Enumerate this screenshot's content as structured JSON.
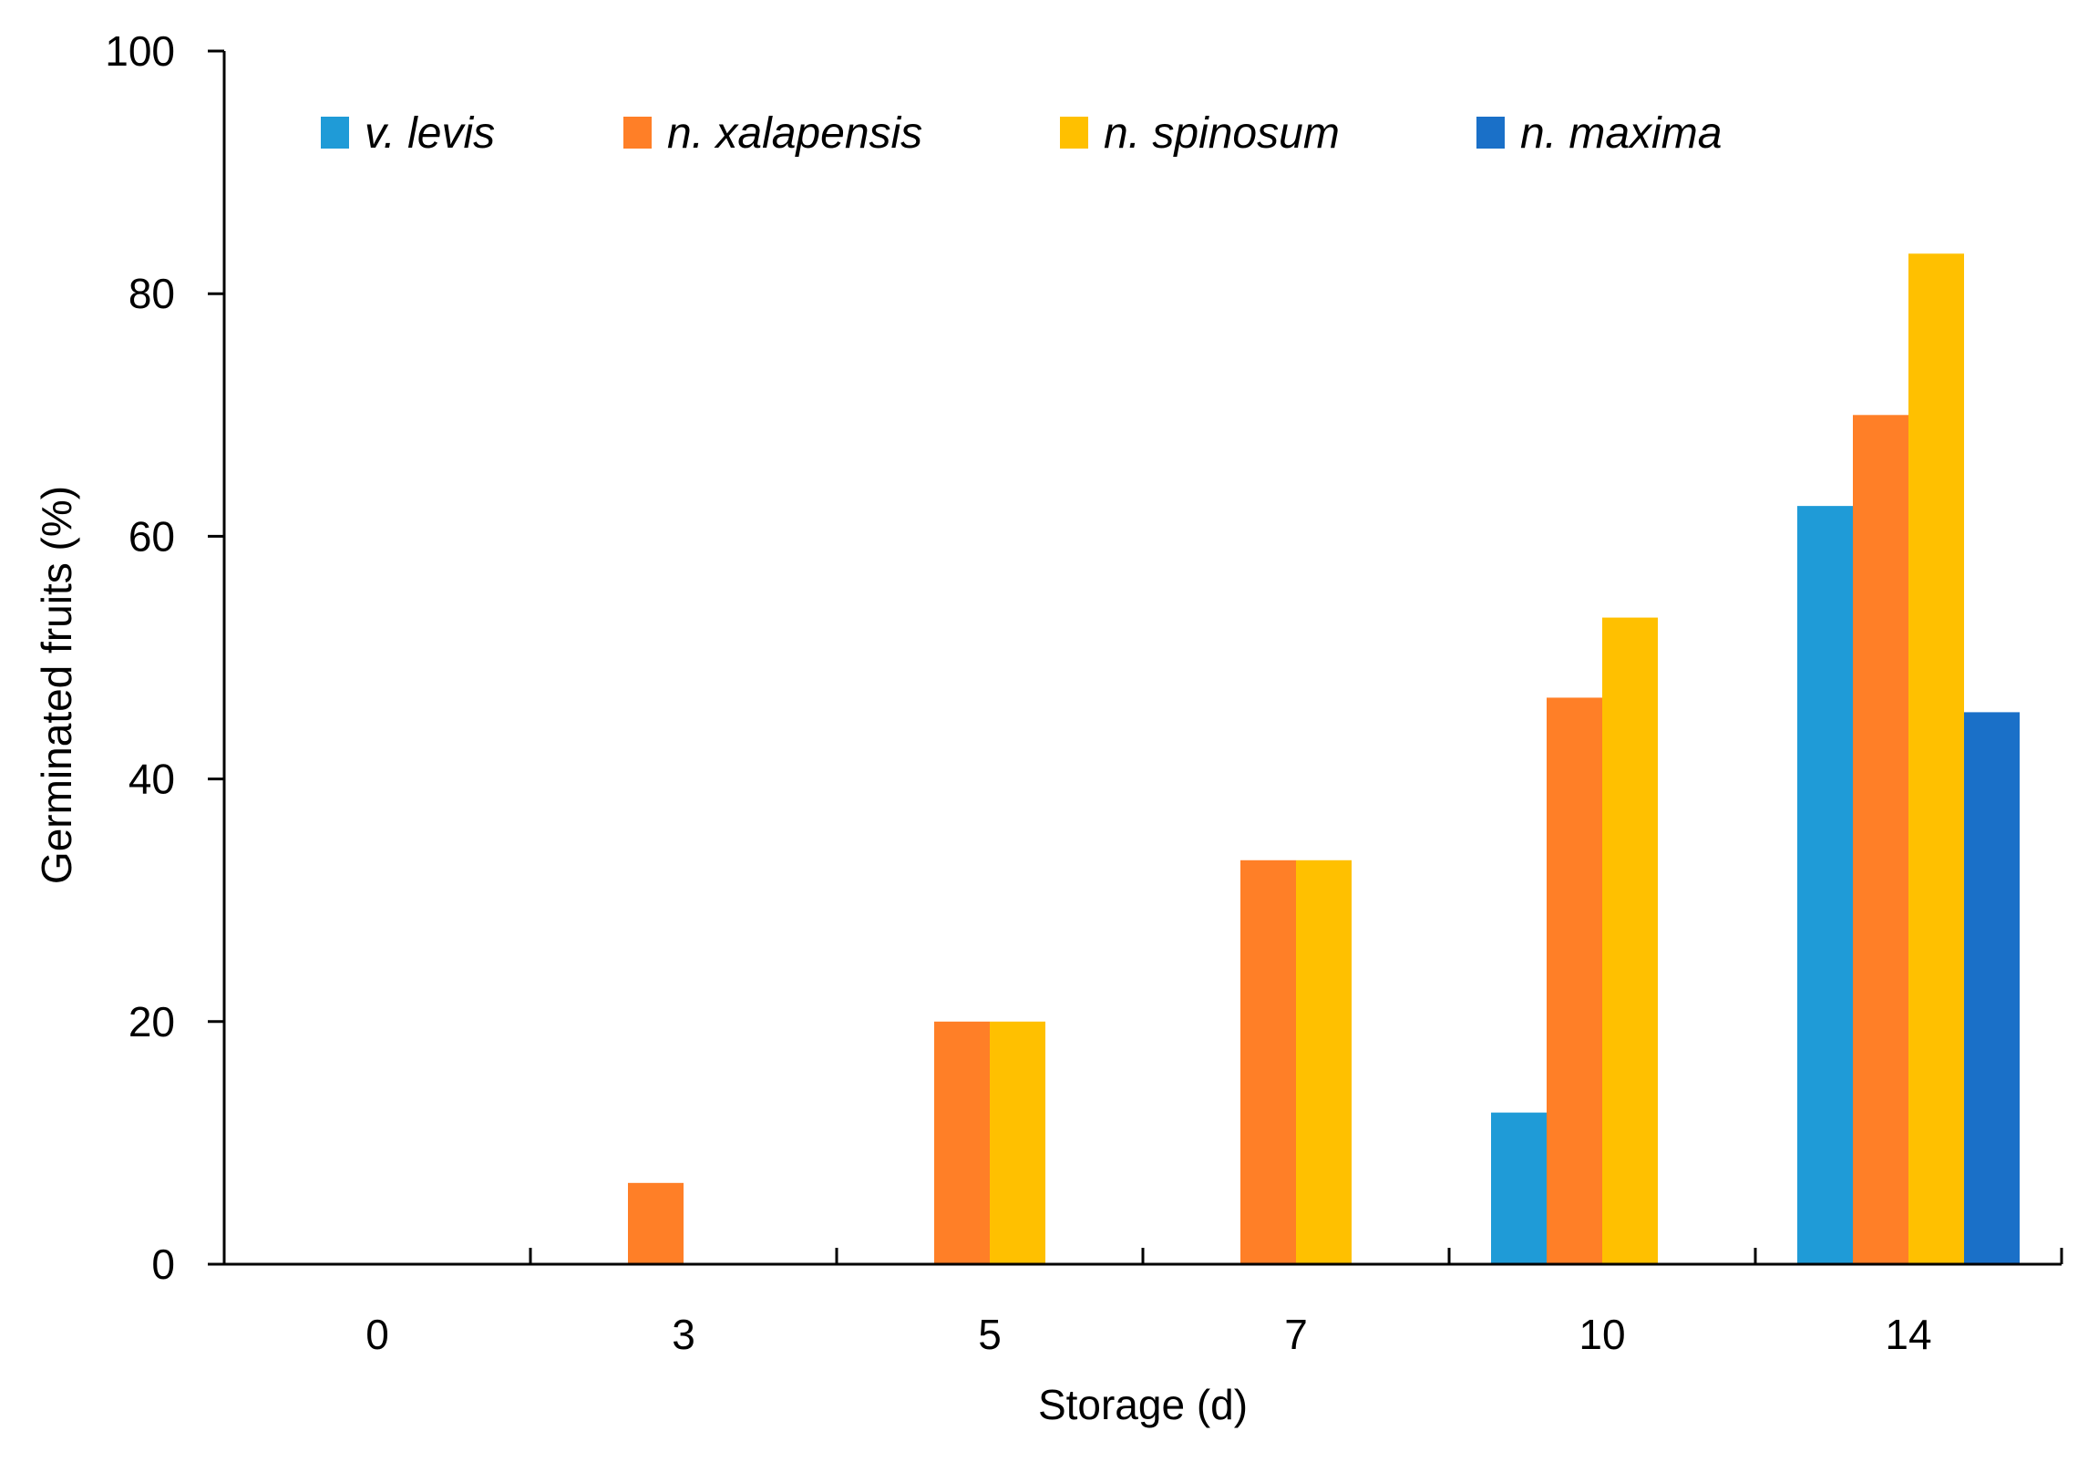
{
  "chart_data": {
    "type": "bar",
    "title": "",
    "xlabel": "Storage (d)",
    "ylabel": "Germinated fruits  (%)",
    "ylim": [
      0,
      100
    ],
    "yticks": [
      0,
      20,
      40,
      60,
      80,
      100
    ],
    "categories": [
      "0",
      "3",
      "5",
      "7",
      "10",
      "14"
    ],
    "legend_position": "top",
    "grid": false,
    "series": [
      {
        "name": "v. levis",
        "color": "#1f9bd7",
        "values": [
          0,
          0,
          0,
          0,
          12.5,
          62.5
        ]
      },
      {
        "name": "n. xalapensis",
        "color": "#ff7f27",
        "values": [
          0,
          6.7,
          20,
          33.3,
          46.7,
          70
        ]
      },
      {
        "name": "n. spinosum",
        "color": "#ffc000",
        "values": [
          0,
          0,
          20,
          33.3,
          53.3,
          83.3
        ]
      },
      {
        "name": "n. maxima",
        "color": "#1a70c8",
        "values": [
          0,
          0,
          0,
          0,
          0,
          45.5
        ]
      }
    ]
  }
}
